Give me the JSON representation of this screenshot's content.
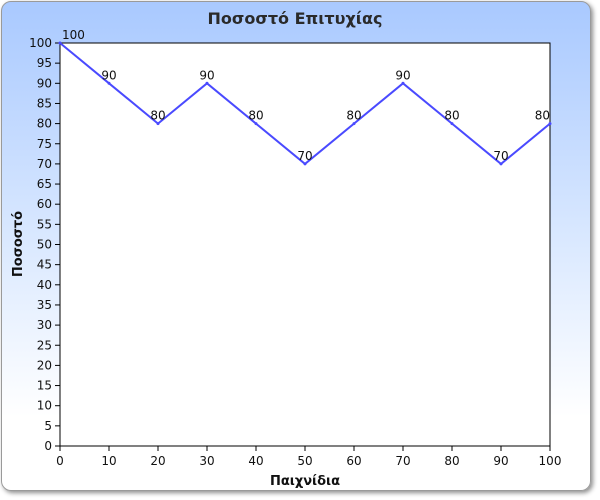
{
  "chart_data": {
    "type": "line",
    "title": "Ποσοστό Επιτυχίας",
    "xlabel": "Παιχνίδια",
    "ylabel": "Ποσοστό",
    "x": [
      0,
      10,
      20,
      30,
      40,
      50,
      60,
      70,
      80,
      90,
      100
    ],
    "series": [
      {
        "values": [
          100,
          90,
          80,
          90,
          80,
          70,
          80,
          90,
          80,
          70,
          80
        ],
        "color": "#4a4aff"
      }
    ],
    "xlim": [
      0,
      100
    ],
    "ylim": [
      0,
      100
    ],
    "x_ticks": [
      0,
      10,
      20,
      30,
      40,
      50,
      60,
      70,
      80,
      90,
      100
    ],
    "y_ticks": [
      0,
      5,
      10,
      15,
      20,
      25,
      30,
      35,
      40,
      45,
      50,
      55,
      60,
      65,
      70,
      75,
      80,
      85,
      90,
      95,
      100
    ],
    "data_labels": true,
    "grid": false,
    "legend": "none",
    "colors": {
      "plot_background": "#ffffff",
      "line": "#4a4aff",
      "gradient_top": "#a9c9ff"
    }
  }
}
